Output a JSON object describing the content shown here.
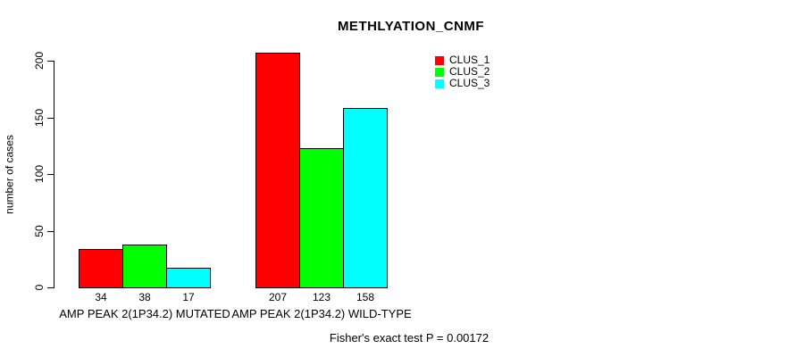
{
  "title": "METHLYATION_CNMF",
  "footer": "Fisher's exact test P = 0.00172",
  "chart_data": {
    "type": "bar",
    "title": "METHLYATION_CNMF",
    "xlabel": "",
    "ylabel": "number of cases",
    "categories": [
      "AMP PEAK 2(1P34.2) MUTATED",
      "AMP PEAK 2(1P34.2) WILD-TYPE"
    ],
    "series": [
      {
        "name": "CLUS_1",
        "color": "#ff0000",
        "values": [
          34,
          207
        ]
      },
      {
        "name": "CLUS_2",
        "color": "#00ff00",
        "values": [
          38,
          123
        ]
      },
      {
        "name": "CLUS_3",
        "color": "#00ffff",
        "values": [
          17,
          158
        ]
      }
    ],
    "bar_value_labels": [
      [
        "34",
        "38",
        "17"
      ],
      [
        "207",
        "123",
        "158"
      ]
    ],
    "yticks": [
      "0",
      "50",
      "100",
      "150",
      "200"
    ],
    "ytick_values": [
      0,
      50,
      100,
      150,
      200
    ],
    "ylim": [
      0,
      200
    ],
    "grid": false,
    "legend_position": "top-right",
    "annotation": "Fisher's exact test P = 0.00172"
  },
  "legend": {
    "entries": [
      {
        "label": "CLUS_1",
        "color": "#ff0000"
      },
      {
        "label": "CLUS_2",
        "color": "#00ff00"
      },
      {
        "label": "CLUS_3",
        "color": "#00ffff"
      }
    ]
  },
  "axis": {
    "y_title": "number of cases"
  }
}
